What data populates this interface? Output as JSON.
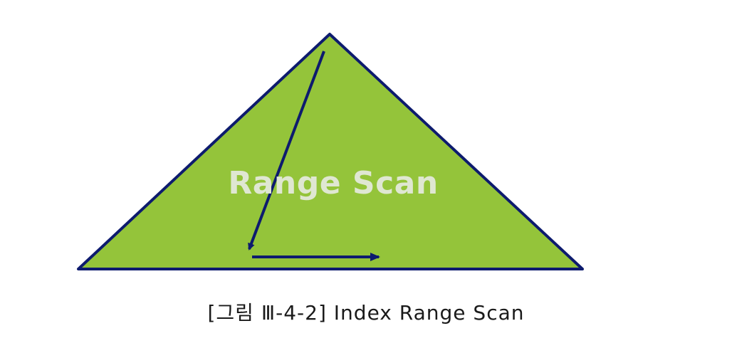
{
  "diagram": {
    "label": "Range Scan",
    "caption": "[그림 Ⅲ-4-2] Index Range Scan"
  },
  "colors": {
    "triangle_fill": "#94c43a",
    "triangle_stroke": "#0d1b6e",
    "arrow": "#0d1b6e",
    "label": "#dfe7d2",
    "caption": "#1a1a1a"
  }
}
